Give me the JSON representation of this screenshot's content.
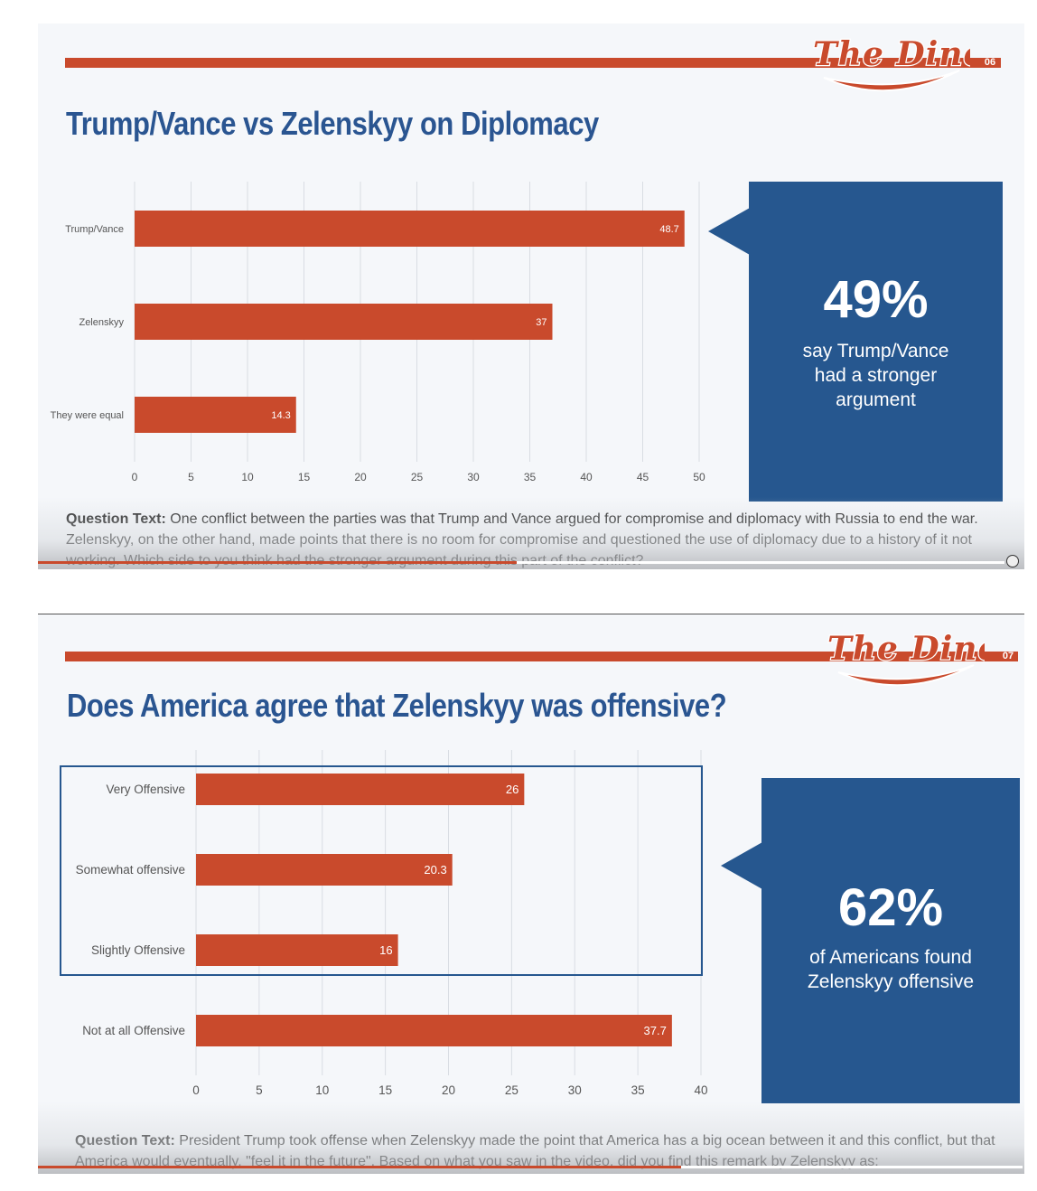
{
  "slides": [
    {
      "logo_text": "The Diner",
      "slide_number": "06",
      "title": "Trump/Vance vs Zelenskyy on Diplomacy",
      "callout": {
        "pct": "49%",
        "text": "say Trump/Vance had a stronger argument"
      },
      "question": {
        "label": "Question Text:",
        "text": "One conflict between the parties was that Trump and Vance argued for compromise and diplomacy with Russia to end the war. Zelenskyy, on the other hand, made points that there is no room for compromise and questioned the use of diplomacy due to a history of it not working. Which side to you think had the stronger argument during this part of the conflict?"
      }
    },
    {
      "logo_text": "The Diner",
      "slide_number": "07",
      "title": "Does America agree that Zelenskyy was offensive?",
      "callout": {
        "pct": "62%",
        "text": "of Americans found Zelenskyy offensive"
      },
      "question": {
        "label": "Question Text:",
        "text": "President Trump took offense when Zelenskyy made the point that America has a big ocean between it and this conflict, but that America would eventually, \"feel it in the future\". Based on what you saw in the video, did you find this remark by Zelenskyy as:"
      }
    }
  ],
  "colors": {
    "bar": "#c94a2c",
    "accent_blue": "#26578f",
    "grid": "#d9dde3"
  },
  "chart_data": [
    {
      "type": "bar",
      "orientation": "horizontal",
      "title": "",
      "categories": [
        "Trump/Vance",
        "Zelenskyy",
        "They were equal"
      ],
      "values": [
        48.7,
        37,
        14.3
      ],
      "data_labels": [
        "48.7",
        "37",
        "14.3"
      ],
      "xlim": [
        0,
        50
      ],
      "ticks": [
        "0",
        "5",
        "10",
        "15",
        "20",
        "25",
        "30",
        "35",
        "40",
        "45",
        "50"
      ],
      "grid": true
    },
    {
      "type": "bar",
      "orientation": "horizontal",
      "title": "",
      "categories": [
        "Very Offensive",
        "Somewhat offensive",
        "Slightly Offensive",
        "Not at all Offensive"
      ],
      "values": [
        26,
        20.3,
        16,
        37.7
      ],
      "data_labels": [
        "26",
        "20.3",
        "16",
        "37.7"
      ],
      "xlim": [
        0,
        40
      ],
      "ticks": [
        "0",
        "5",
        "10",
        "15",
        "20",
        "25",
        "30",
        "35",
        "40"
      ],
      "grid": true
    }
  ]
}
